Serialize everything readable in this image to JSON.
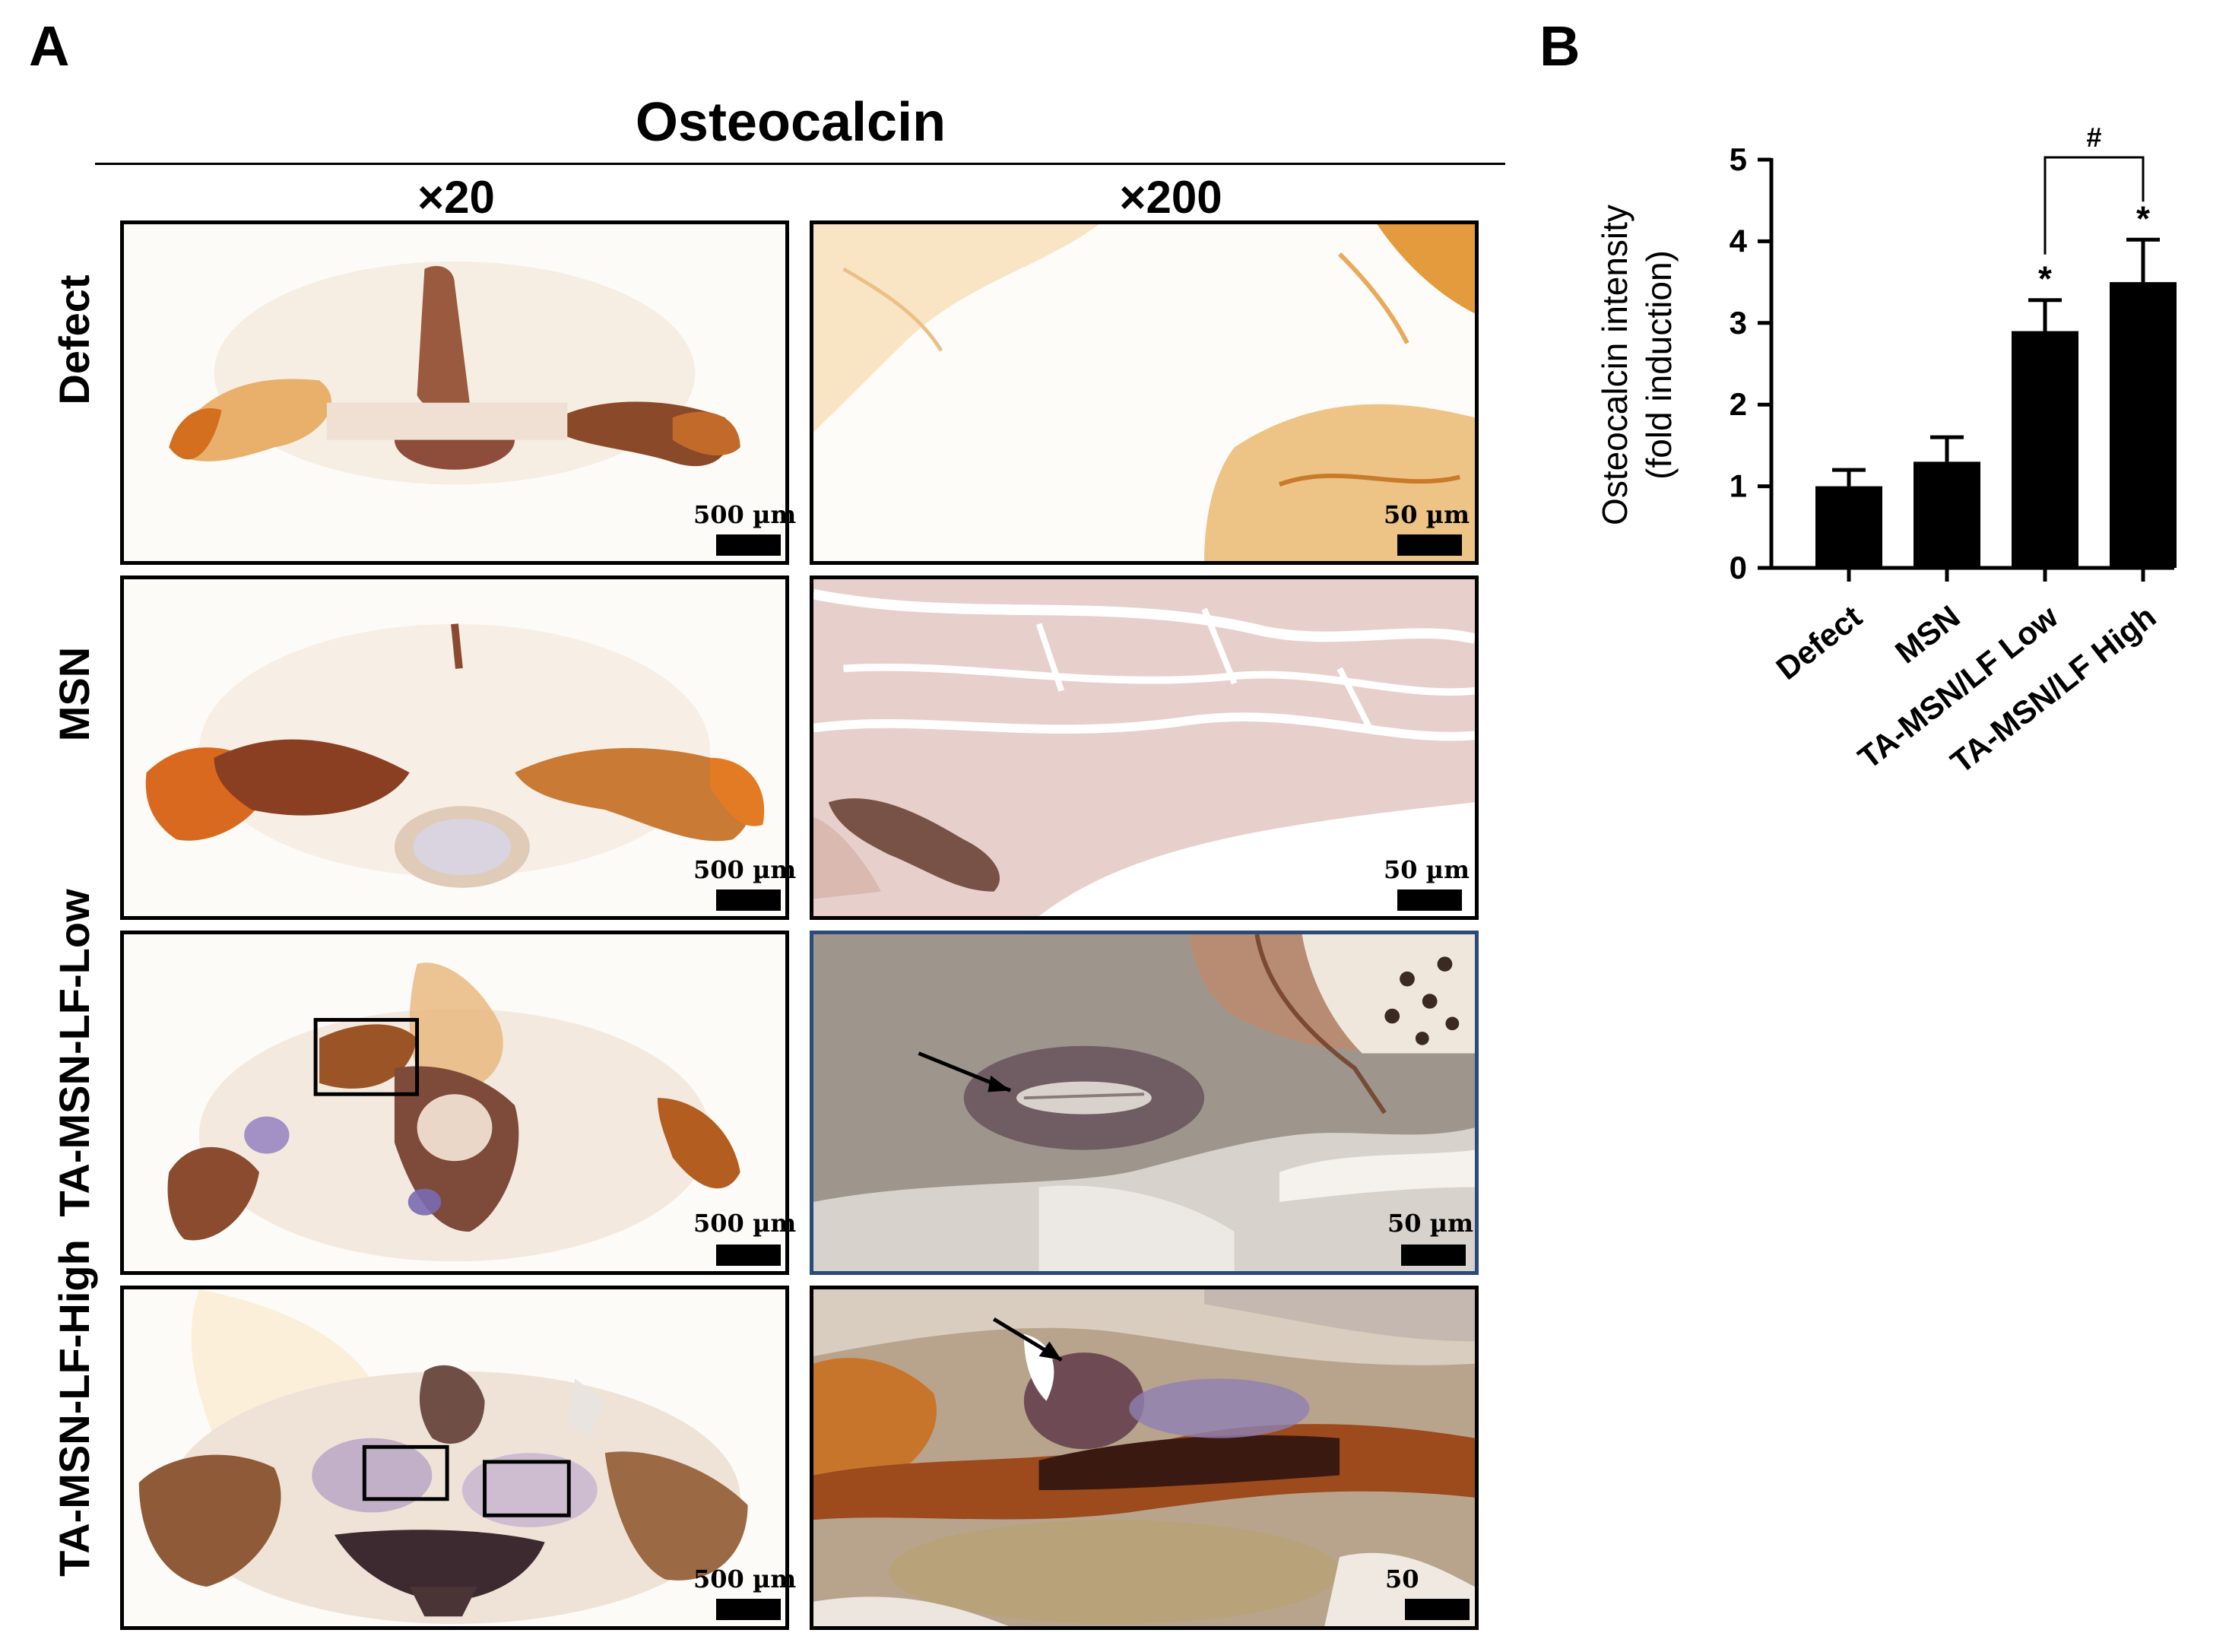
{
  "panel_a": {
    "letter": "A",
    "title": "Osteocalcin",
    "columns": [
      "×20",
      "×200"
    ],
    "rows": [
      "Defect",
      "MSN",
      "TA-MSN-LF-Low",
      "TA-MSN-LF-High"
    ],
    "scale_labels": [
      [
        "500 µm",
        "50 µm"
      ],
      [
        "500 µm",
        "50 µm"
      ],
      [
        "500 µm",
        "50 µm"
      ],
      [
        "500 µm",
        "50"
      ]
    ]
  },
  "panel_b": {
    "letter": "B"
  },
  "chart_data": {
    "type": "bar",
    "categories": [
      "Defect",
      "MSN",
      "TA-MSN/LF Low",
      "TA-MSN/LF High"
    ],
    "values": [
      1.0,
      1.3,
      2.9,
      3.5
    ],
    "errors": [
      0.2,
      0.3,
      0.38,
      0.52
    ],
    "significance": [
      "",
      "",
      "*",
      "*"
    ],
    "bracket": {
      "from": "TA-MSN/LF Low",
      "to": "TA-MSN/LF High",
      "label": "#"
    },
    "ylabel": "Osteocalcin intensity (fold induction)",
    "ylabel_lines": [
      "Osteocalcin intensity",
      "(fold induction)"
    ],
    "yticks": [
      0,
      1,
      2,
      3,
      4,
      5
    ],
    "ylim": [
      0,
      5
    ],
    "bar_color": "#000000"
  },
  "colors": {
    "stain_brown": "#8a4a1e",
    "stain_orange": "#d9822b",
    "stain_purple": "#8e7bbf",
    "tissue_pink": "#e6ccc8",
    "tissue_gray": "#a9a29a",
    "low_frame_border": "#2b4a7a"
  }
}
